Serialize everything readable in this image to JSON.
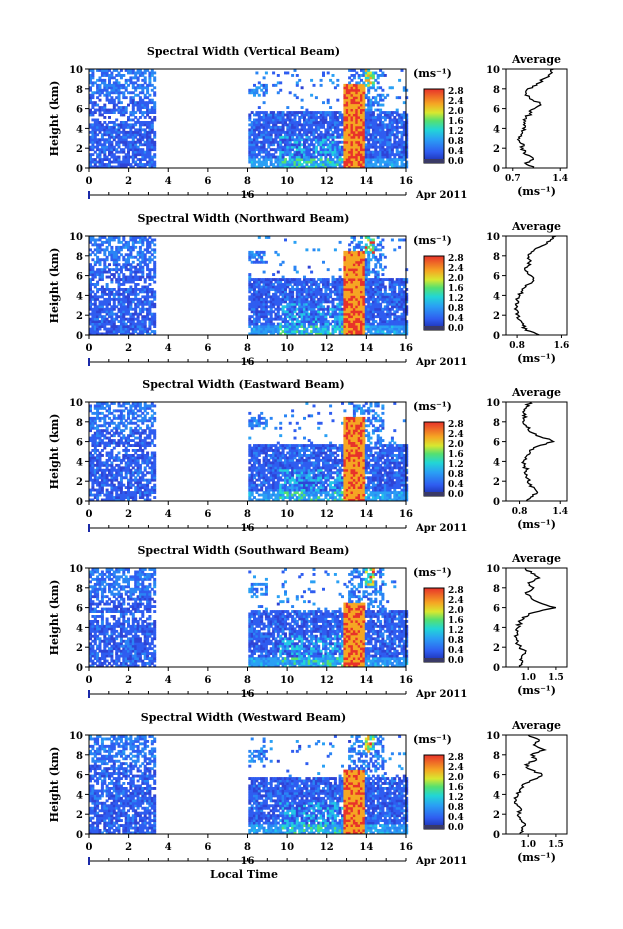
{
  "figure": {
    "xlabel_bottom": "Local Time",
    "date_label": "Apr 2011",
    "day_label": "16",
    "colorbar_unit": "(ms⁻¹)",
    "avg_xunit": "(ms⁻¹)"
  },
  "chart_data": [
    {
      "type": "heatmap",
      "title": "Spectral Width (Vertical Beam)",
      "xlabel": "",
      "ylabel": "Height (km)",
      "xticks": [
        "0",
        "2",
        "4",
        "6",
        "8",
        "10",
        "12",
        "14",
        "16"
      ],
      "yticks": [
        "0",
        "2",
        "4",
        "6",
        "8",
        "10"
      ],
      "xlim": [
        0,
        16
      ],
      "ylim": [
        0,
        10
      ],
      "colorbar": {
        "ticks": [
          "0.0",
          "0.4",
          "0.8",
          "1.2",
          "1.6",
          "2.0",
          "2.4",
          "2.8"
        ],
        "range": [
          0,
          2.8
        ]
      },
      "average_panel": {
        "title": "Average",
        "xticks": [
          "0.7",
          "1.4"
        ],
        "xlim": [
          0.6,
          1.5
        ],
        "profile": [
          [
            0,
            1.0
          ],
          [
            0.5,
            0.88
          ],
          [
            1,
            1.0
          ],
          [
            1.5,
            0.86
          ],
          [
            2,
            0.85
          ],
          [
            2.5,
            0.82
          ],
          [
            3,
            0.8
          ],
          [
            3.5,
            0.84
          ],
          [
            4,
            0.85
          ],
          [
            4.5,
            0.88
          ],
          [
            5,
            0.9
          ],
          [
            5.5,
            0.95
          ],
          [
            6,
            1.02
          ],
          [
            6.5,
            1.1
          ],
          [
            7,
            0.95
          ],
          [
            7.5,
            0.9
          ],
          [
            8,
            0.92
          ],
          [
            8.5,
            1.05
          ],
          [
            9,
            1.15
          ],
          [
            9.5,
            1.25
          ],
          [
            10,
            1.3
          ]
        ]
      }
    },
    {
      "type": "heatmap",
      "title": "Spectral Width (Northward Beam)",
      "xlabel": "",
      "ylabel": "Height (km)",
      "xticks": [
        "0",
        "2",
        "4",
        "6",
        "8",
        "10",
        "12",
        "14",
        "16"
      ],
      "yticks": [
        "0",
        "2",
        "4",
        "6",
        "8",
        "10"
      ],
      "xlim": [
        0,
        16
      ],
      "ylim": [
        0,
        10
      ],
      "colorbar": {
        "ticks": [
          "0.0",
          "0.4",
          "0.8",
          "1.2",
          "1.6",
          "2.0",
          "2.4",
          "2.8"
        ],
        "range": [
          0,
          2.8
        ]
      },
      "average_panel": {
        "title": "Average",
        "xticks": [
          "0.8",
          "1.6"
        ],
        "xlim": [
          0.6,
          1.7
        ],
        "profile": [
          [
            0,
            1.2
          ],
          [
            0.5,
            0.95
          ],
          [
            1,
            0.9
          ],
          [
            1.5,
            0.85
          ],
          [
            2,
            0.82
          ],
          [
            2.5,
            0.8
          ],
          [
            3,
            0.78
          ],
          [
            3.5,
            0.8
          ],
          [
            4,
            0.85
          ],
          [
            4.5,
            0.9
          ],
          [
            5,
            0.95
          ],
          [
            5.5,
            1.1
          ],
          [
            6,
            1.05
          ],
          [
            6.5,
            0.95
          ],
          [
            7,
            1.0
          ],
          [
            7.5,
            1.05
          ],
          [
            8,
            1.0
          ],
          [
            8.5,
            1.1
          ],
          [
            9,
            1.25
          ],
          [
            9.5,
            1.4
          ],
          [
            10,
            1.5
          ]
        ]
      }
    },
    {
      "type": "heatmap",
      "title": "Spectral Width (Eastward Beam)",
      "xlabel": "",
      "ylabel": "Height (km)",
      "xticks": [
        "0",
        "2",
        "4",
        "6",
        "8",
        "10",
        "12",
        "14",
        "16"
      ],
      "yticks": [
        "0",
        "2",
        "4",
        "6",
        "8",
        "10"
      ],
      "xlim": [
        0,
        16
      ],
      "ylim": [
        0,
        10
      ],
      "colorbar": {
        "ticks": [
          "0.0",
          "0.4",
          "0.8",
          "1.2",
          "1.6",
          "2.0",
          "2.4",
          "2.8"
        ],
        "range": [
          0,
          2.8
        ]
      },
      "average_panel": {
        "title": "Average",
        "xticks": [
          "0.8",
          "1.4"
        ],
        "xlim": [
          0.6,
          1.5
        ],
        "profile": [
          [
            0,
            0.9
          ],
          [
            0.5,
            1.0
          ],
          [
            1,
            1.05
          ],
          [
            1.5,
            0.95
          ],
          [
            2,
            0.92
          ],
          [
            2.5,
            0.9
          ],
          [
            3,
            0.9
          ],
          [
            3.5,
            0.88
          ],
          [
            4,
            0.86
          ],
          [
            4.5,
            0.9
          ],
          [
            5,
            0.95
          ],
          [
            5.5,
            1.05
          ],
          [
            6,
            1.3
          ],
          [
            6.5,
            1.1
          ],
          [
            7,
            0.95
          ],
          [
            7.5,
            0.9
          ],
          [
            8,
            0.85
          ],
          [
            8.5,
            0.9
          ],
          [
            9,
            0.85
          ],
          [
            9.5,
            0.9
          ],
          [
            10,
            0.95
          ]
        ]
      }
    },
    {
      "type": "heatmap",
      "title": "Spectral Width (Southward Beam)",
      "xlabel": "",
      "ylabel": "Height (km)",
      "xticks": [
        "0",
        "2",
        "4",
        "6",
        "8",
        "10",
        "12",
        "14",
        "16"
      ],
      "yticks": [
        "0",
        "2",
        "4",
        "6",
        "8",
        "10"
      ],
      "xlim": [
        0,
        16
      ],
      "ylim": [
        0,
        10
      ],
      "colorbar": {
        "ticks": [
          "0.0",
          "0.4",
          "0.8",
          "1.2",
          "1.6",
          "2.0",
          "2.4",
          "2.8"
        ],
        "range": [
          0,
          2.8
        ]
      },
      "average_panel": {
        "title": "Average",
        "xticks": [
          "1.0",
          "1.5"
        ],
        "xlim": [
          0.6,
          1.7
        ],
        "profile": [
          [
            0,
            0.85
          ],
          [
            0.5,
            0.9
          ],
          [
            1,
            0.88
          ],
          [
            1.5,
            0.95
          ],
          [
            2,
            0.85
          ],
          [
            2.5,
            0.8
          ],
          [
            3,
            0.78
          ],
          [
            3.5,
            0.8
          ],
          [
            4,
            0.82
          ],
          [
            4.5,
            0.85
          ],
          [
            5,
            0.9
          ],
          [
            5.5,
            1.1
          ],
          [
            6,
            1.5
          ],
          [
            6.5,
            1.2
          ],
          [
            7,
            1.05
          ],
          [
            7.5,
            0.95
          ],
          [
            8,
            1.1
          ],
          [
            8.5,
            1.0
          ],
          [
            9,
            1.2
          ],
          [
            9.5,
            1.05
          ],
          [
            10,
            0.95
          ]
        ]
      }
    },
    {
      "type": "heatmap",
      "title": "Spectral Width (Westward Beam)",
      "xlabel": "Local Time",
      "ylabel": "Height (km)",
      "xticks": [
        "0",
        "2",
        "4",
        "6",
        "8",
        "10",
        "12",
        "14",
        "16"
      ],
      "yticks": [
        "0",
        "2",
        "4",
        "6",
        "8",
        "10"
      ],
      "xlim": [
        0,
        16
      ],
      "ylim": [
        0,
        10
      ],
      "colorbar": {
        "ticks": [
          "0.0",
          "0.4",
          "0.8",
          "1.2",
          "1.6",
          "2.0",
          "2.4",
          "2.8"
        ],
        "range": [
          0,
          2.8
        ]
      },
      "average_panel": {
        "title": "Average",
        "xticks": [
          "1.0",
          "1.5"
        ],
        "xlim": [
          0.6,
          1.7
        ],
        "profile": [
          [
            0,
            0.85
          ],
          [
            0.5,
            0.9
          ],
          [
            1,
            0.95
          ],
          [
            1.5,
            0.85
          ],
          [
            2,
            0.82
          ],
          [
            2.5,
            0.88
          ],
          [
            3,
            0.8
          ],
          [
            3.5,
            0.78
          ],
          [
            4,
            0.82
          ],
          [
            4.5,
            0.85
          ],
          [
            5,
            0.9
          ],
          [
            5.5,
            1.1
          ],
          [
            6,
            1.25
          ],
          [
            6.5,
            1.05
          ],
          [
            7,
            0.95
          ],
          [
            7.5,
            1.15
          ],
          [
            8,
            1.05
          ],
          [
            8.5,
            1.3
          ],
          [
            9,
            1.1
          ],
          [
            9.5,
            1.2
          ],
          [
            10,
            1.0
          ]
        ]
      }
    }
  ]
}
